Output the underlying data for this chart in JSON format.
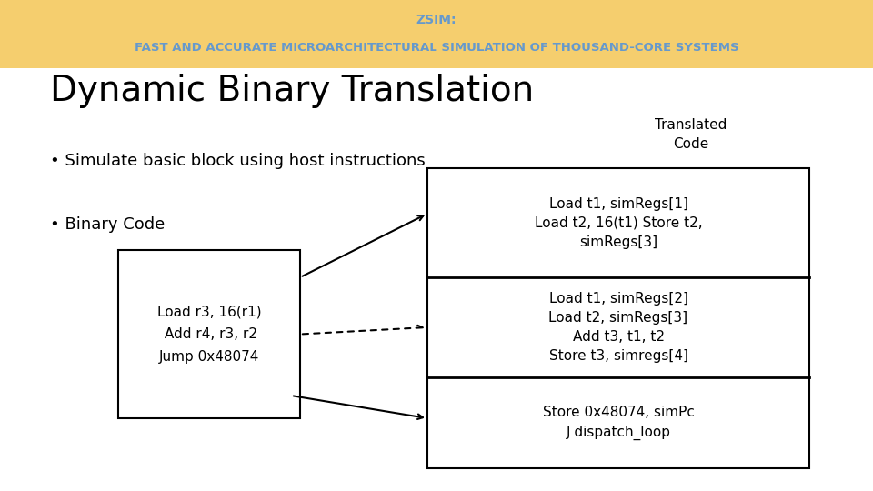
{
  "header_bg": "#F5CE6E",
  "header_text_line1": "ZSIM:",
  "header_text_line2": "FAST AND ACCURATE MICROARCHITECTURAL SIMULATION OF THOUSAND-CORE SYSTEMS",
  "header_text_color": "#6699CC",
  "title": "Dynamic Binary Translation",
  "title_color": "#000000",
  "bullet1": "• Simulate basic block using host instructions",
  "bullet2": "• Binary Code",
  "translated_label": "Translated\nCode",
  "binary_box_text": "Load r3, 16(r1)\n Add r4, r3, r2\nJump 0x48074",
  "right_box1_text": "Load t1, simRegs[1]\nLoad t2, 16(t1) Store t2,\nsimRegs[3]",
  "right_box2_text": "Load t1, simRegs[2]\nLoad t2, simRegs[3]\nAdd t3, t1, t2\nStore t3, simregs[4]",
  "right_box3_text": "Store 0x48074, simPc\nJ dispatch_loop",
  "bg_color": "#FFFFFF"
}
